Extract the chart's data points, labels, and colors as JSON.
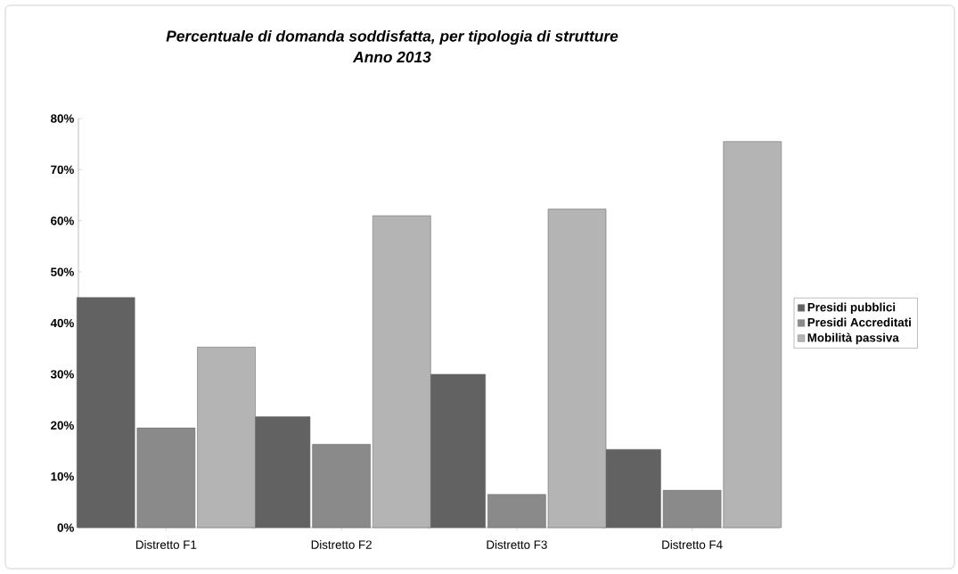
{
  "chart_data": {
    "type": "bar",
    "title": "Percentuale di domanda soddisfatta, per tipologia di strutture",
    "subtitle": "Anno 2013",
    "categories": [
      "Distretto F1",
      "Distretto F2",
      "Distretto F3",
      "Distretto F4"
    ],
    "series": [
      {
        "name": "Presidi pubblici",
        "color": "#626262",
        "values": [
          45,
          21.7,
          30,
          15.3
        ]
      },
      {
        "name": "Presidi Accreditati",
        "color": "#8a8a8a",
        "values": [
          19.5,
          16.3,
          6.5,
          7.3
        ]
      },
      {
        "name": "Mobilità passiva",
        "color": "#b4b4b4",
        "values": [
          35.3,
          61,
          62.3,
          75.5
        ]
      }
    ],
    "ylim": [
      0,
      80
    ],
    "yticks": [
      {
        "value": 0,
        "label": "0%"
      },
      {
        "value": 10,
        "label": "10%"
      },
      {
        "value": 20,
        "label": "20%"
      },
      {
        "value": 30,
        "label": "30%"
      },
      {
        "value": 40,
        "label": "40%"
      },
      {
        "value": 50,
        "label": "50%"
      },
      {
        "value": 60,
        "label": "60%"
      },
      {
        "value": 70,
        "label": "70%"
      },
      {
        "value": 80,
        "label": "80%"
      }
    ],
    "grid": false,
    "legend": "right"
  }
}
